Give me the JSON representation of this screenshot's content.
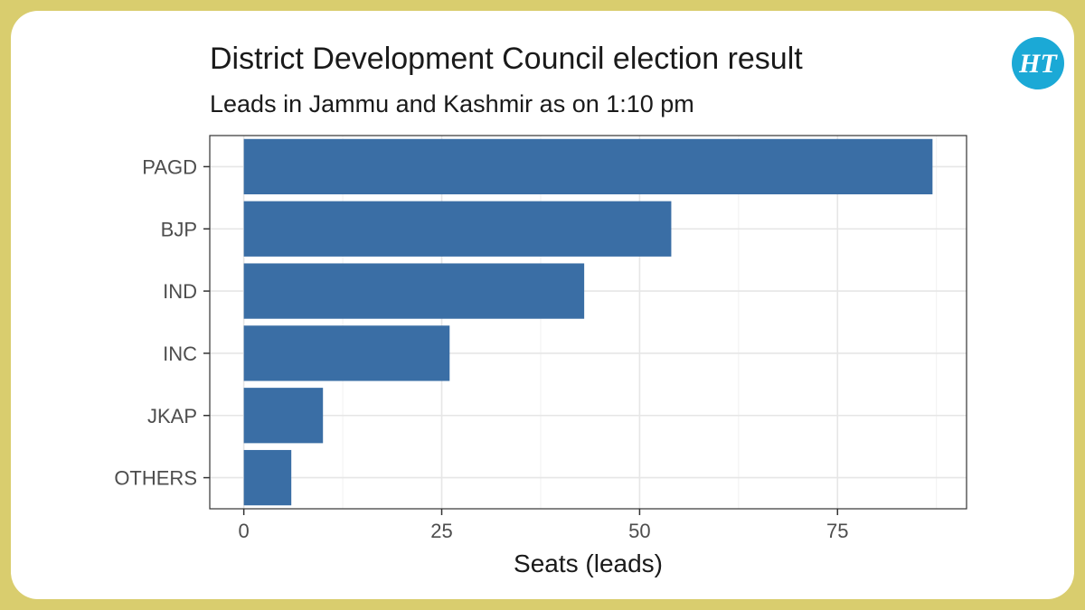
{
  "brand": {
    "logo_text": "HT",
    "logo_color": "#1ba9d6",
    "frame_color": "#d9cd6e"
  },
  "chart_data": {
    "type": "bar",
    "orientation": "horizontal",
    "title": "District Development Council election result",
    "subtitle": "Leads in Jammu and Kashmir as on 1:10 pm",
    "xlabel": "Seats (leads)",
    "ylabel": "",
    "categories": [
      "PAGD",
      "BJP",
      "IND",
      "INC",
      "JKAP",
      "OTHERS"
    ],
    "values": [
      87,
      54,
      43,
      26,
      10,
      6
    ],
    "xlim": [
      -4.3,
      91.3
    ],
    "xticks": [
      0,
      25,
      50,
      75
    ],
    "bar_color": "#3a6ea5",
    "grid": true,
    "legend": "none"
  }
}
